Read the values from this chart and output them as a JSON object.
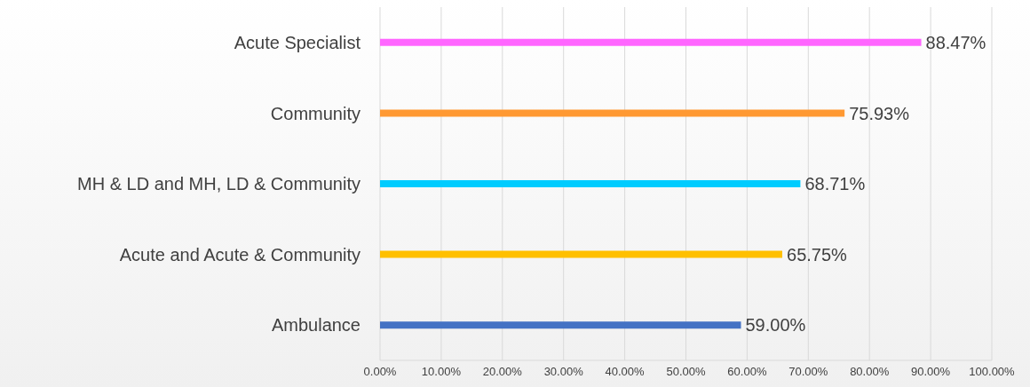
{
  "chart_data": {
    "type": "bar",
    "orientation": "horizontal",
    "categories": [
      "Acute Specialist",
      "Community",
      "MH & LD and MH, LD & Community",
      "Acute and Acute & Community",
      "Ambulance"
    ],
    "values": [
      88.47,
      75.93,
      68.71,
      65.75,
      59.0
    ],
    "colors": [
      "#ff66ff",
      "#ff9933",
      "#00ccff",
      "#ffc000",
      "#4472c4"
    ],
    "value_labels": [
      "88.47%",
      "75.93%",
      "68.71%",
      "65.75%",
      "59.00%"
    ],
    "xlim": [
      0,
      100
    ],
    "xticks": [
      {
        "value": 0,
        "label": "0.00%"
      },
      {
        "value": 10,
        "label": "10.00%"
      },
      {
        "value": 20,
        "label": "20.00%"
      },
      {
        "value": 30,
        "label": "30.00%"
      },
      {
        "value": 40,
        "label": "40.00%"
      },
      {
        "value": 50,
        "label": "50.00%"
      },
      {
        "value": 60,
        "label": "60.00%"
      },
      {
        "value": 70,
        "label": "70.00%"
      },
      {
        "value": 80,
        "label": "80.00%"
      },
      {
        "value": 90,
        "label": "90.00%"
      },
      {
        "value": 100,
        "label": "100.00%"
      }
    ],
    "grid": "x"
  }
}
